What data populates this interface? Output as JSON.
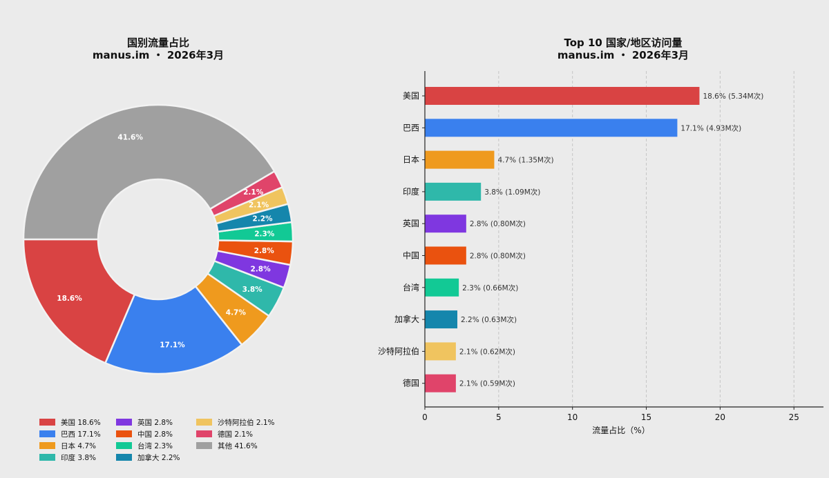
{
  "chart_data": [
    {
      "type": "pie",
      "title_line1": "国别流量占比",
      "title_line2": "manus.im ・ 2026年3月",
      "donut": true,
      "slices": [
        {
          "label": "美国",
          "value": 18.6,
          "color": "#d94343"
        },
        {
          "label": "巴西",
          "value": 17.1,
          "color": "#3a80ee"
        },
        {
          "label": "日本",
          "value": 4.7,
          "color": "#ef9a1e"
        },
        {
          "label": "印度",
          "value": 3.8,
          "color": "#2fb8aa"
        },
        {
          "label": "英国",
          "value": 2.8,
          "color": "#7f37e0"
        },
        {
          "label": "中国",
          "value": 2.8,
          "color": "#ea520f"
        },
        {
          "label": "台湾",
          "value": 2.3,
          "color": "#12c995"
        },
        {
          "label": "加拿大",
          "value": 2.2,
          "color": "#1586ac"
        },
        {
          "label": "沙特阿拉伯",
          "value": 2.1,
          "color": "#f0c45f"
        },
        {
          "label": "德国",
          "value": 2.1,
          "color": "#e0446a"
        },
        {
          "label": "其他",
          "value": 41.6,
          "color": "#a0a0a0"
        }
      ],
      "slice_labels": [
        "18.6%",
        "17.1%",
        "4.7%",
        "3.8%",
        "2.8%",
        "2.8%",
        "2.3%",
        "2.2%",
        "2.1%",
        "2.1%",
        "41.6%"
      ],
      "legend": [
        "美国 18.6%",
        "巴西 17.1%",
        "日本 4.7%",
        "印度 3.8%",
        "英国 2.8%",
        "中国 2.8%",
        "台湾 2.3%",
        "加拿大 2.2%",
        "沙特阿拉伯 2.1%",
        "德国 2.1%",
        "其他 41.6%"
      ],
      "legend_placement": "bottom"
    },
    {
      "type": "bar",
      "orientation": "horizontal",
      "title_line1": "Top 10 国家/地区访问量",
      "title_line2": "manus.im ・ 2026年3月",
      "categories": [
        "美国",
        "巴西",
        "日本",
        "印度",
        "英国",
        "中国",
        "台湾",
        "加拿大",
        "沙特阿拉伯",
        "德国"
      ],
      "values": [
        18.6,
        17.1,
        4.7,
        3.8,
        2.8,
        2.8,
        2.3,
        2.2,
        2.1,
        2.1
      ],
      "colors": [
        "#d94343",
        "#3a80ee",
        "#ef9a1e",
        "#2fb8aa",
        "#7f37e0",
        "#ea520f",
        "#12c995",
        "#1586ac",
        "#f0c45f",
        "#e0446a"
      ],
      "bar_labels": [
        "18.6%  (5.34M次)",
        "17.1%  (4.93M次)",
        "4.7%  (1.35M次)",
        "3.8%  (1.09M次)",
        "2.8%  (0.80M次)",
        "2.8%  (0.80M次)",
        "2.3%  (0.66M次)",
        "2.2%  (0.63M次)",
        "2.1%  (0.62M次)",
        "2.1%  (0.59M次)"
      ],
      "xlabel": "流量占比（%）",
      "xlim": [
        0,
        27
      ],
      "xticks": [
        "0",
        "5",
        "10",
        "15",
        "20",
        "25"
      ],
      "grid": "x-dashed"
    }
  ]
}
